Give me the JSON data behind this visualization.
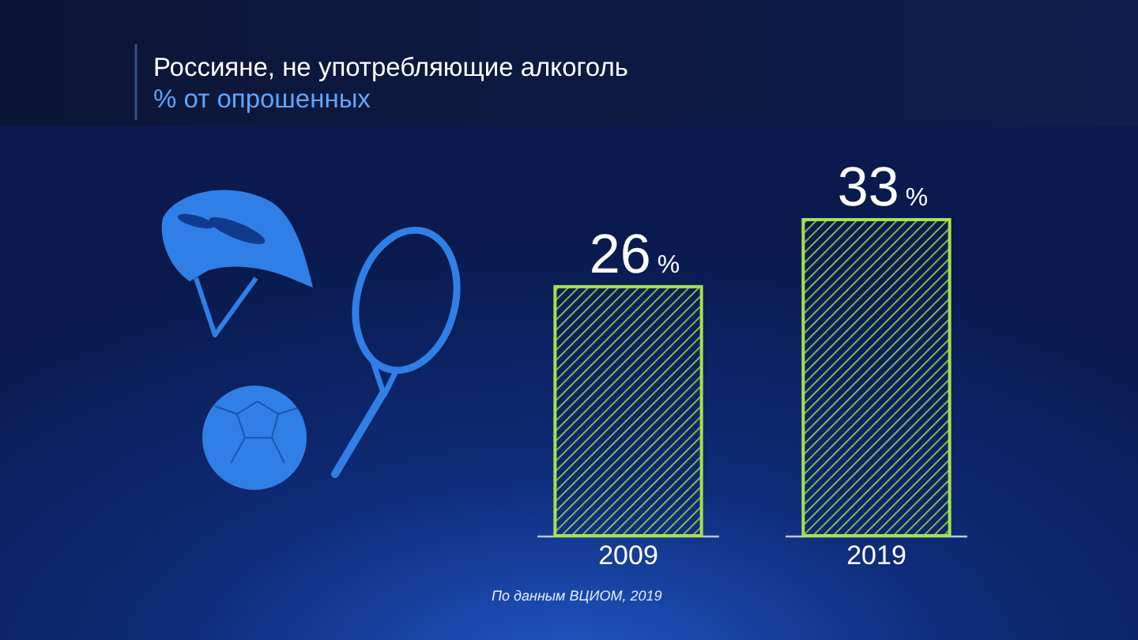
{
  "chart_data": {
    "type": "bar",
    "title": "Россияне, не употребляющие алкоголь",
    "subtitle": "% от опрошенных",
    "categories": [
      "2009",
      "2019"
    ],
    "values": [
      26,
      33
    ],
    "color": "#a6e24c",
    "value_labels": [
      "26%",
      "33%"
    ],
    "annotations": [
      "По данным ВЦИОМ, 2019"
    ]
  }
}
